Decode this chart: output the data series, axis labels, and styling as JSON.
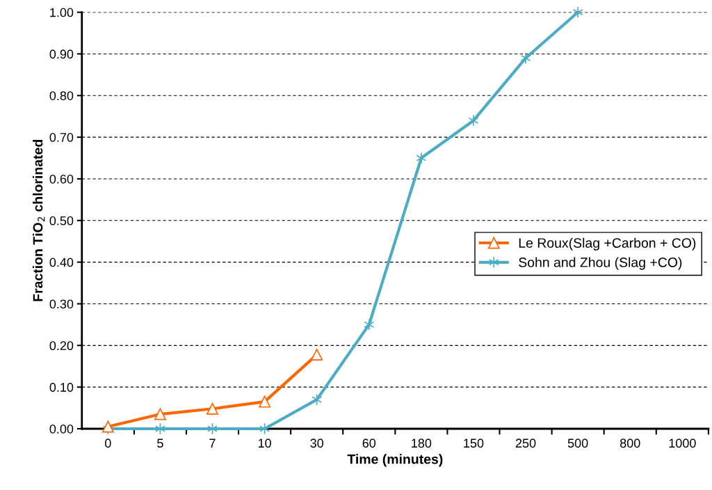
{
  "chart_data": {
    "type": "line",
    "xlabel": "Time (minutes)",
    "ylabel": "Fraction TiO$_{2}$ chlorinated",
    "categories": [
      "0",
      "5",
      "7",
      "10",
      "30",
      "60",
      "180",
      "150",
      "250",
      "500",
      "800",
      "1000"
    ],
    "series": [
      {
        "name": "Le Roux(Slag +Carbon + CO)",
        "color": "#ff6600",
        "marker": "triangle",
        "values": [
          0.005,
          0.035,
          0.048,
          0.065,
          0.178,
          null,
          null,
          null,
          null,
          null,
          null,
          null
        ]
      },
      {
        "name": "Sohn and Zhou (Slag +CO)",
        "color": "#4bacc6",
        "marker": "cross",
        "values": [
          0.0,
          0.0,
          0.0,
          0.0,
          0.07,
          0.25,
          0.65,
          0.74,
          0.89,
          1.0,
          null,
          null
        ]
      }
    ],
    "ylim": [
      0,
      1.0
    ],
    "yticks": [
      {
        "value": 0,
        "label": "0.00"
      },
      {
        "value": 0.1,
        "label": "0.10"
      },
      {
        "value": 0.2,
        "label": "0.20"
      },
      {
        "value": 0.3,
        "label": "0.30"
      },
      {
        "value": 0.4,
        "label": "0.40"
      },
      {
        "value": 0.5,
        "label": "0.50"
      },
      {
        "value": 0.6,
        "label": "0.60"
      },
      {
        "value": 0.7,
        "label": "0.70"
      },
      {
        "value": 0.8,
        "label": "0.80"
      },
      {
        "value": 0.9,
        "label": "0.90"
      },
      {
        "value": 1.0,
        "label": "1.00"
      }
    ],
    "grid": "y",
    "legend": "right",
    "line_style": "solid"
  }
}
